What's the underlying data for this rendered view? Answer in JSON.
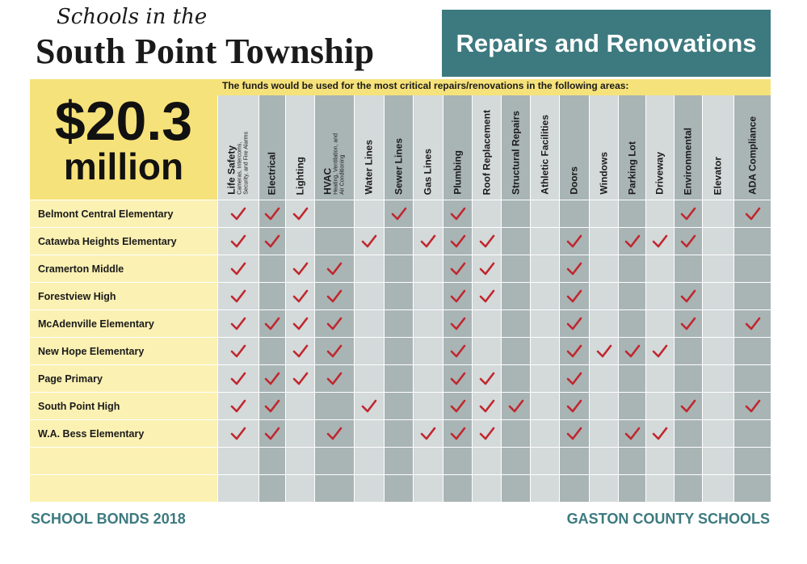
{
  "header": {
    "subtitle": "Schools in the",
    "title": "South Point Township",
    "banner": "Repairs and Renovations"
  },
  "amount": {
    "value": "$20.3",
    "unit": "million"
  },
  "intro": "The funds would be used for the most critical repairs/renovations in the following areas:",
  "columns": [
    {
      "label": "Life Safety",
      "sub": [
        "Cameras, Intercoms,",
        "Security, and Fire Alarms"
      ]
    },
    {
      "label": "Electrical"
    },
    {
      "label": "Lighting"
    },
    {
      "label": "HVAC",
      "sub": [
        "Heating, Ventilation, and",
        "Air Conditioning"
      ]
    },
    {
      "label": "Water Lines"
    },
    {
      "label": "Sewer Lines"
    },
    {
      "label": "Gas Lines"
    },
    {
      "label": "Plumbing"
    },
    {
      "label": "Roof Replacement"
    },
    {
      "label": "Structural Repairs"
    },
    {
      "label": "Athletic Facilities"
    },
    {
      "label": "Doors"
    },
    {
      "label": "Windows"
    },
    {
      "label": "Parking Lot"
    },
    {
      "label": "Driveway"
    },
    {
      "label": "Environmental"
    },
    {
      "label": "Elevator"
    },
    {
      "label": "ADA Compliance"
    }
  ],
  "schools": [
    {
      "name": "Belmont Central Elementary",
      "checks": [
        1,
        1,
        1,
        0,
        0,
        1,
        0,
        1,
        0,
        0,
        0,
        0,
        0,
        0,
        0,
        1,
        0,
        1
      ]
    },
    {
      "name": "Catawba Heights Elementary",
      "checks": [
        1,
        1,
        0,
        0,
        1,
        0,
        1,
        1,
        1,
        0,
        0,
        1,
        0,
        1,
        1,
        1,
        0,
        0
      ]
    },
    {
      "name": "Cramerton Middle",
      "checks": [
        1,
        0,
        1,
        1,
        0,
        0,
        0,
        1,
        1,
        0,
        0,
        1,
        0,
        0,
        0,
        0,
        0,
        0
      ]
    },
    {
      "name": "Forestview High",
      "checks": [
        1,
        0,
        1,
        1,
        0,
        0,
        0,
        1,
        1,
        0,
        0,
        1,
        0,
        0,
        0,
        1,
        0,
        0
      ]
    },
    {
      "name": "McAdenville Elementary",
      "checks": [
        1,
        1,
        1,
        1,
        0,
        0,
        0,
        1,
        0,
        0,
        0,
        1,
        0,
        0,
        0,
        1,
        0,
        1
      ]
    },
    {
      "name": "New Hope Elementary",
      "checks": [
        1,
        0,
        1,
        1,
        0,
        0,
        0,
        1,
        0,
        0,
        0,
        1,
        1,
        1,
        1,
        0,
        0,
        0
      ]
    },
    {
      "name": "Page Primary",
      "checks": [
        1,
        1,
        1,
        1,
        0,
        0,
        0,
        1,
        1,
        0,
        0,
        1,
        0,
        0,
        0,
        0,
        0,
        0
      ]
    },
    {
      "name": "South Point High",
      "checks": [
        1,
        1,
        0,
        0,
        1,
        0,
        0,
        1,
        1,
        1,
        0,
        1,
        0,
        0,
        0,
        1,
        0,
        1
      ]
    },
    {
      "name": "W.A. Bess Elementary",
      "checks": [
        1,
        1,
        0,
        1,
        0,
        0,
        1,
        1,
        1,
        0,
        0,
        1,
        0,
        1,
        1,
        0,
        0,
        0
      ]
    },
    {
      "name": "",
      "checks": [
        0,
        0,
        0,
        0,
        0,
        0,
        0,
        0,
        0,
        0,
        0,
        0,
        0,
        0,
        0,
        0,
        0,
        0
      ]
    },
    {
      "name": "",
      "checks": [
        0,
        0,
        0,
        0,
        0,
        0,
        0,
        0,
        0,
        0,
        0,
        0,
        0,
        0,
        0,
        0,
        0,
        0
      ]
    }
  ],
  "colors": {
    "teal": "#3d7a7f",
    "yellow": "#f6e27a",
    "yellowLight": "#fbf1b3",
    "colLight": "#d4d9da",
    "colDark": "#a9b4b5",
    "check": "#c0272d"
  },
  "footer": {
    "left": "SCHOOL BONDS 2018",
    "right": "GASTON COUNTY SCHOOLS"
  }
}
